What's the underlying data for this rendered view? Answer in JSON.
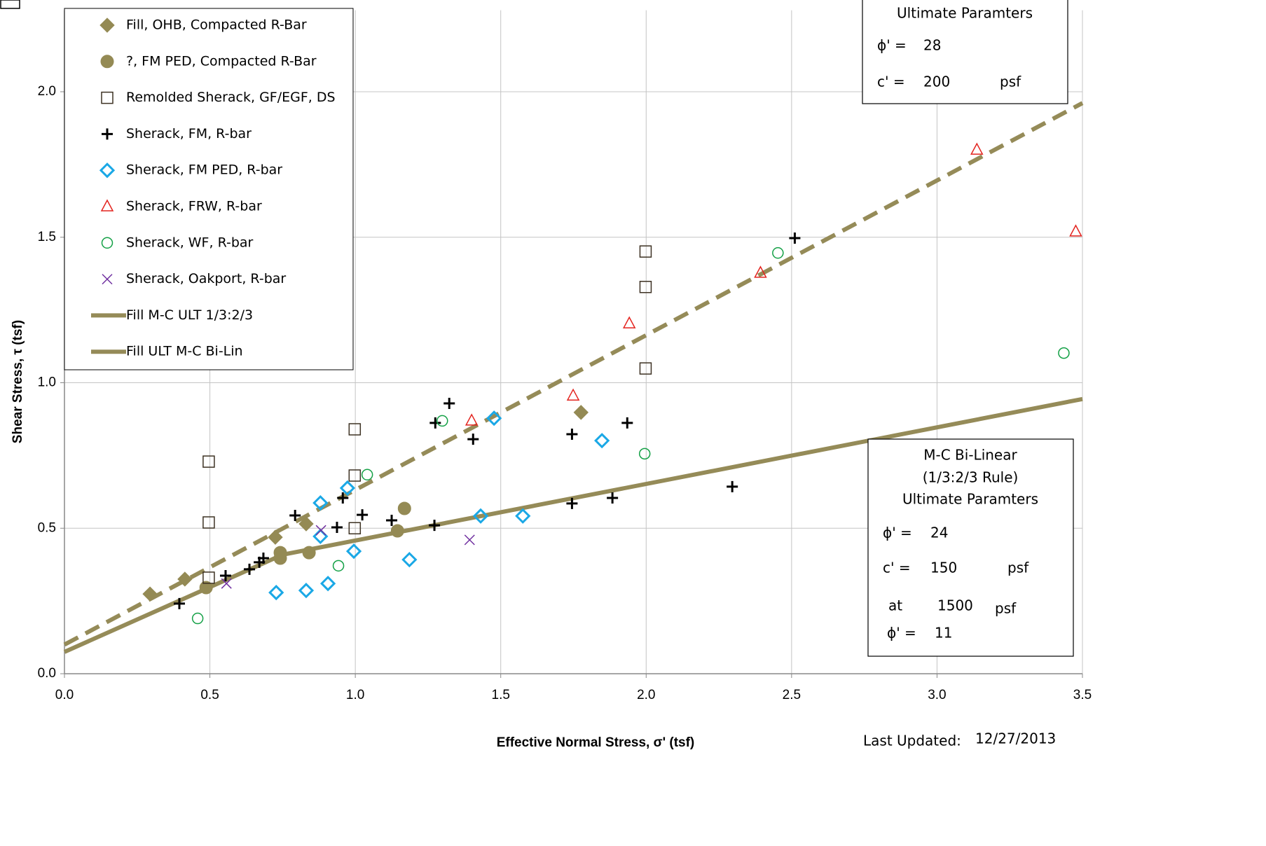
{
  "chart_data": {
    "type": "scatter",
    "x_label": "Effective Normal Stress, σ' (tsf)",
    "y_label": "Shear Stress, τ (tsf)",
    "xlim": [
      0,
      3.5
    ],
    "ylim": [
      0,
      2.28
    ],
    "xticks": [
      {
        "value": 0,
        "label": "0.0"
      },
      {
        "value": 0.5,
        "label": "0.5"
      },
      {
        "value": 1,
        "label": "1.0"
      },
      {
        "value": 1.5,
        "label": "1.5"
      },
      {
        "value": 2,
        "label": "2.0"
      },
      {
        "value": 2.5,
        "label": "2.5"
      },
      {
        "value": 3,
        "label": "3.0"
      },
      {
        "value": 3.5,
        "label": "3.5"
      }
    ],
    "yticks": [
      {
        "value": 0,
        "label": "0.0"
      },
      {
        "value": 0.5,
        "label": "0.5"
      },
      {
        "value": 1,
        "label": "1.0"
      },
      {
        "value": 1.5,
        "label": "1.5"
      },
      {
        "value": 2,
        "label": "2.0"
      }
    ],
    "grid": true,
    "legend": "upper left",
    "series": [
      {
        "name": "Fill, OHB, Compacted R-Bar",
        "marker": "diamond-filled",
        "color": "#948a54",
        "x": [
          0.294,
          0.414,
          0.725,
          0.831,
          1.776
        ],
        "values": [
          0.274,
          0.325,
          0.469,
          0.515,
          0.898
        ]
      },
      {
        "name": "?, FM PED, Compacted R-Bar",
        "marker": "circle-filled",
        "color": "#948a54",
        "x": [
          0.487,
          0.742,
          0.742,
          0.841,
          1.145,
          1.169
        ],
        "values": [
          0.296,
          0.397,
          0.416,
          0.416,
          0.491,
          0.568
        ]
      },
      {
        "name": "Remolded Sherack, GF/EGF, DS",
        "marker": "square-open",
        "color": "#3d3223",
        "x": [
          0.496,
          0.496,
          0.496,
          0.998,
          0.998,
          0.998,
          1.998,
          1.998,
          1.998
        ],
        "values": [
          0.729,
          0.52,
          0.33,
          0.84,
          0.681,
          0.5,
          1.451,
          1.329,
          1.049
        ]
      },
      {
        "name": "Sherack, FM, R-bar",
        "marker": "plus",
        "color": "#000000",
        "x": [
          0.395,
          0.554,
          0.636,
          0.67,
          0.684,
          0.793,
          0.937,
          0.957,
          1.024,
          1.125,
          1.272,
          1.275,
          1.323,
          1.405,
          1.745,
          1.745,
          1.884,
          1.935,
          2.296,
          2.511
        ],
        "values": [
          0.241,
          0.337,
          0.359,
          0.383,
          0.397,
          0.544,
          0.503,
          0.604,
          0.546,
          0.527,
          0.51,
          0.862,
          0.929,
          0.806,
          0.585,
          0.823,
          0.604,
          0.862,
          0.643,
          1.497
        ]
      },
      {
        "name": "Sherack, FM PED, R-bar",
        "marker": "diamond-open",
        "color": "#1aa8e6",
        "x": [
          0.728,
          0.831,
          0.88,
          0.88,
          0.906,
          0.973,
          0.995,
          1.186,
          1.431,
          1.477,
          1.576,
          1.848
        ],
        "values": [
          0.279,
          0.286,
          0.587,
          0.472,
          0.31,
          0.638,
          0.421,
          0.392,
          0.542,
          0.878,
          0.542,
          0.801
        ]
      },
      {
        "name": "Sherack, FRW, R-bar",
        "marker": "triangle-open",
        "color": "#e3231e",
        "x": [
          1.4,
          1.749,
          1.942,
          2.393,
          3.137,
          3.477
        ],
        "values": [
          0.869,
          0.955,
          1.203,
          1.377,
          1.8,
          1.519
        ]
      },
      {
        "name": "Sherack, WF, R-bar",
        "marker": "circle-open",
        "color": "#13a045",
        "x": [
          0.458,
          0.942,
          1.041,
          1.299,
          1.995,
          2.453,
          3.436
        ],
        "values": [
          0.19,
          0.371,
          0.684,
          0.869,
          0.756,
          1.446,
          1.102
        ]
      },
      {
        "name": "Sherack, Oakport, R-bar",
        "marker": "x",
        "color": "#7030a0",
        "x": [
          0.557,
          0.882,
          1.393
        ],
        "values": [
          0.31,
          0.493,
          0.46
        ]
      },
      {
        "name": "Fill M-C ULT 1/3:2/3",
        "marker": "line",
        "dashed": true,
        "color": "#958b58",
        "x": [
          0,
          3.5
        ],
        "values": [
          0.1,
          1.961
        ]
      },
      {
        "name": "Fill ULT M-C Bi-Lin",
        "marker": "line",
        "dashed": false,
        "color": "#958b58",
        "x": [
          0,
          0.75,
          3.5
        ],
        "values": [
          0.075,
          0.409,
          0.944
        ]
      }
    ],
    "boxes": [
      {
        "lines": [
          "Ultimate Paramters",
          "ϕ' =",
          "28",
          "c' =",
          "200",
          "psf"
        ]
      },
      {
        "lines": [
          "M-C  Bi-Linear",
          "(1/3:2/3 Rule)",
          "Ultimate Paramters",
          "ϕ' =",
          "24",
          "c' =",
          "150",
          "psf",
          "at",
          "1500",
          "psf",
          "ϕ' =",
          "11"
        ]
      }
    ],
    "footer": {
      "label": "Last Updated:",
      "date": "12/27/2013"
    }
  }
}
